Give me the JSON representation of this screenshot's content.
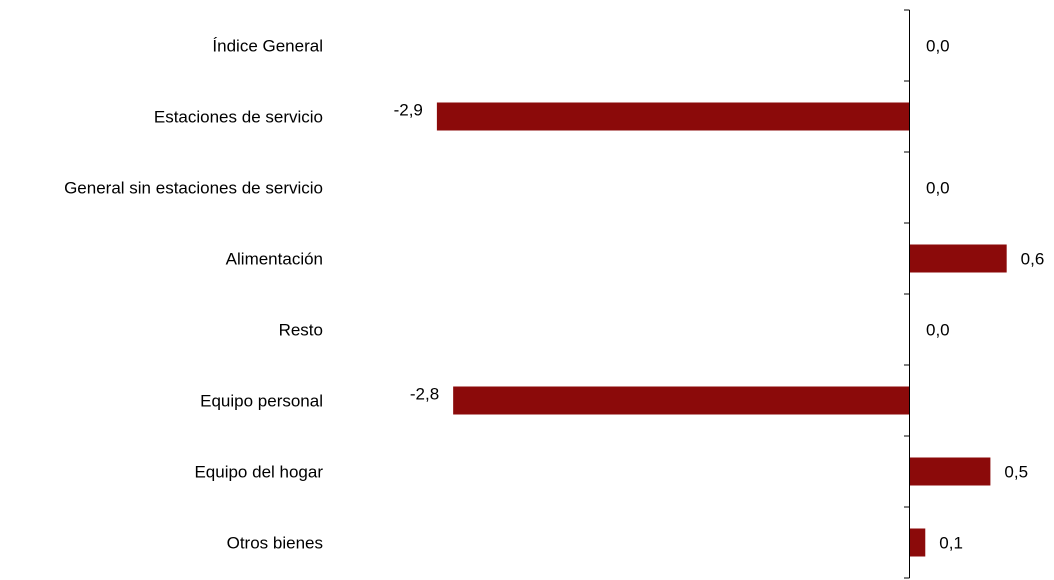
{
  "chart_data": {
    "type": "bar",
    "orientation": "horizontal",
    "categories": [
      "Índice General",
      "Estaciones de servicio",
      "General sin estaciones de servicio",
      "Alimentación",
      "Resto",
      "Equipo personal",
      "Equipo del hogar",
      "Otros bienes"
    ],
    "values": [
      0.0,
      -2.9,
      0.0,
      0.6,
      0.0,
      -2.8,
      0.5,
      0.1
    ],
    "value_labels": [
      "0,0",
      "-2,9",
      "0,0",
      "0,6",
      "0,0",
      "-2,8",
      "0,5",
      "0,1"
    ],
    "bar_color": "#8b0a0a",
    "axis_color": "#000000",
    "grid": false,
    "legend": "none"
  }
}
